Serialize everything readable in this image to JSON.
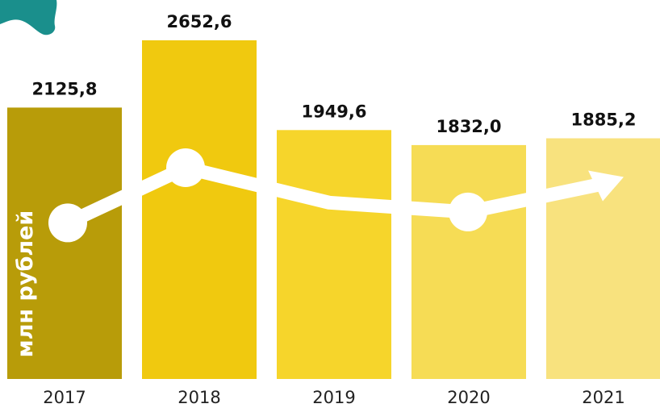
{
  "chart_data": {
    "type": "bar",
    "categories": [
      "2017",
      "2018",
      "2019",
      "2020",
      "2021"
    ],
    "values": [
      2125.8,
      2652.6,
      1949.6,
      1832.0,
      1885.2
    ],
    "value_labels": [
      "2125,8",
      "2652,6",
      "1949,6",
      "1832,0",
      "1885,2"
    ],
    "ylabel": "млн рублей",
    "title": "",
    "ylim": [
      0,
      2652.6
    ],
    "grid": false,
    "legend": "none",
    "bar_colors": [
      "#b89c09",
      "#f0c90f",
      "#f6d52b",
      "#f6dc55",
      "#f8e27e"
    ],
    "trend_line_color": "#ffffff",
    "trend_markers": [
      "circle",
      "circle",
      "none",
      "circle",
      "arrow"
    ],
    "decoration_color": "#1a8f8c"
  }
}
